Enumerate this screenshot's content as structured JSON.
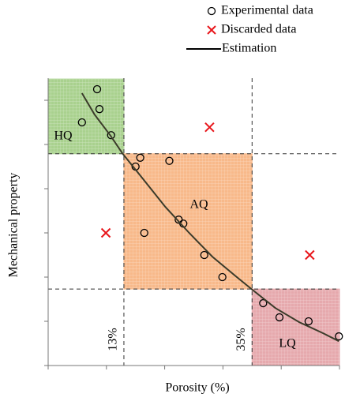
{
  "chart_data": {
    "type": "scatter",
    "x_label": "Porosity (%)",
    "y_label": "Mechanical property",
    "xlim": [
      0,
      50
    ],
    "ylim": [
      0,
      6.5
    ],
    "xticks": [
      0,
      10,
      20,
      30,
      40,
      50
    ],
    "yticks": [
      0,
      1,
      2,
      3,
      4,
      5,
      6
    ],
    "legend": "top-right",
    "series": [
      {
        "name": "Experimental data",
        "marker": "circle",
        "color": "#000000",
        "x": [
          5.8,
          8.4,
          8.8,
          10.8,
          15.0,
          15.8,
          16.5,
          20.8,
          22.4,
          23.2,
          26.8,
          29.9,
          36.9,
          39.7,
          44.7,
          49.9
        ],
        "values": [
          5.5,
          6.25,
          5.8,
          5.21,
          4.5,
          4.7,
          3.0,
          4.63,
          3.3,
          3.21,
          2.5,
          2.0,
          1.41,
          1.09,
          1.0,
          0.66
        ]
      },
      {
        "name": "Discarded data",
        "marker": "x",
        "color": "#e8161b",
        "x": [
          27.7,
          9.9,
          44.9
        ],
        "values": [
          5.39,
          3.0,
          2.5
        ]
      },
      {
        "name": "Estimation",
        "marker": "line",
        "color": "#000000",
        "x": [
          5.8,
          7.95,
          10.7,
          12.8,
          16.1,
          20.1,
          24.2,
          28.2,
          32.2,
          34.9,
          39.0,
          43.1,
          47.2,
          49.9
        ],
        "values": [
          6.16,
          5.68,
          5.2,
          4.79,
          4.25,
          3.59,
          3.0,
          2.46,
          2.02,
          1.73,
          1.3,
          0.98,
          0.73,
          0.55
        ]
      }
    ],
    "regions": [
      {
        "label": "HQ",
        "color": "#a9d18e",
        "x": [
          0,
          13
        ],
        "y": [
          4.79,
          6.48
        ]
      },
      {
        "label": "AQ",
        "color": "#f8b98a",
        "x": [
          13,
          35
        ],
        "y": [
          1.73,
          4.79
        ]
      },
      {
        "label": "LQ",
        "color": "#e6a9ad",
        "x": [
          35,
          50
        ],
        "y": [
          0,
          1.73
        ]
      }
    ],
    "thresholds_x": [
      {
        "value": 13,
        "label": "13%"
      },
      {
        "value": 35,
        "label": "35%"
      }
    ],
    "thresholds_y": [
      4.79,
      1.73
    ]
  }
}
